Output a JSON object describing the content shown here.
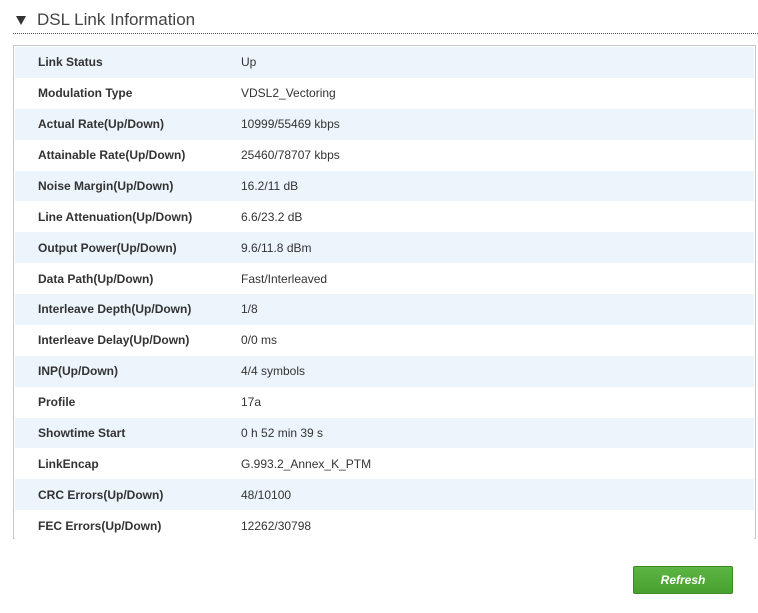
{
  "section": {
    "title": "DSL Link Information",
    "toggle_icon": "triangle-down-icon"
  },
  "colors": {
    "row_alt": "#ecf4fc",
    "button_green": "#4faa35",
    "border": "#c8c8c8"
  },
  "rows": [
    {
      "label": "Link Status",
      "value": "Up"
    },
    {
      "label": "Modulation Type",
      "value": "VDSL2_Vectoring"
    },
    {
      "label": "Actual Rate(Up/Down)",
      "value": "10999/55469 kbps"
    },
    {
      "label": "Attainable Rate(Up/Down)",
      "value": "25460/78707 kbps"
    },
    {
      "label": "Noise Margin(Up/Down)",
      "value": "16.2/11 dB"
    },
    {
      "label": "Line Attenuation(Up/Down)",
      "value": "6.6/23.2 dB"
    },
    {
      "label": "Output Power(Up/Down)",
      "value": "9.6/11.8 dBm"
    },
    {
      "label": "Data Path(Up/Down)",
      "value": "Fast/Interleaved"
    },
    {
      "label": "Interleave Depth(Up/Down)",
      "value": "1/8"
    },
    {
      "label": "Interleave Delay(Up/Down)",
      "value": "0/0 ms"
    },
    {
      "label": "INP(Up/Down)",
      "value": "4/4 symbols"
    },
    {
      "label": "Profile",
      "value": "17a"
    },
    {
      "label": "Showtime Start",
      "value": "0 h 52 min 39 s"
    },
    {
      "label": "LinkEncap",
      "value": "G.993.2_Annex_K_PTM"
    },
    {
      "label": "CRC Errors(Up/Down)",
      "value": "48/10100"
    },
    {
      "label": "FEC Errors(Up/Down)",
      "value": "12262/30798"
    }
  ],
  "actions": {
    "refresh_label": "Refresh"
  }
}
